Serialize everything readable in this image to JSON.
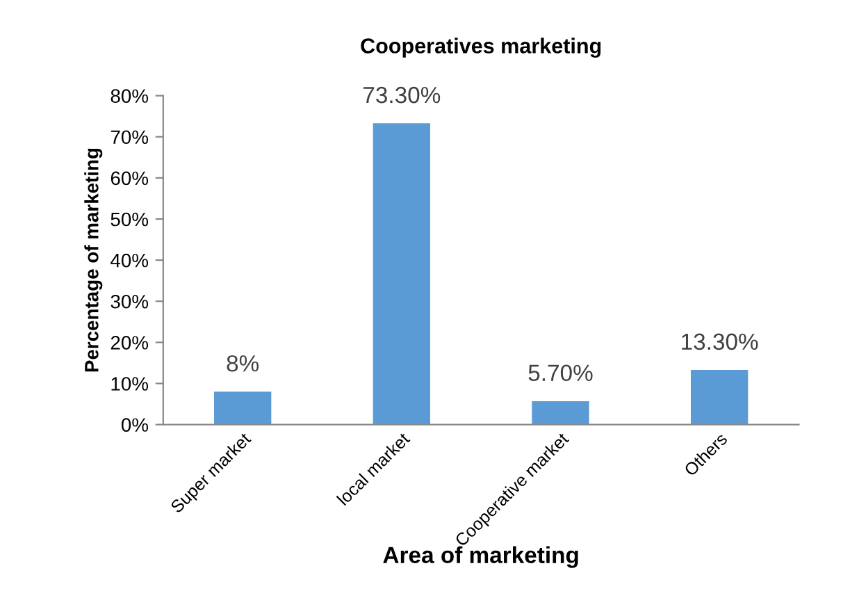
{
  "chart_data": {
    "type": "bar",
    "title": "Cooperatives marketing",
    "xlabel": "Area of marketing",
    "ylabel": "Percentage of marketing",
    "categories": [
      "Super market",
      "local market",
      "Cooperative market",
      "Others"
    ],
    "values": [
      8,
      73.3,
      5.7,
      13.3
    ],
    "value_labels": [
      "8%",
      "73.30%",
      "5.70%",
      "13.30%"
    ],
    "color": "#5b9bd5",
    "ylim": [
      0,
      80
    ],
    "yticks": [
      {
        "value": 0,
        "label": "0%"
      },
      {
        "value": 10,
        "label": "10%"
      },
      {
        "value": 20,
        "label": "20%"
      },
      {
        "value": 30,
        "label": "30%"
      },
      {
        "value": 40,
        "label": "40%"
      },
      {
        "value": 50,
        "label": "50%"
      },
      {
        "value": 60,
        "label": "60%"
      },
      {
        "value": 70,
        "label": "70%"
      },
      {
        "value": 80,
        "label": "80%"
      }
    ],
    "grid": false,
    "legend": false
  }
}
